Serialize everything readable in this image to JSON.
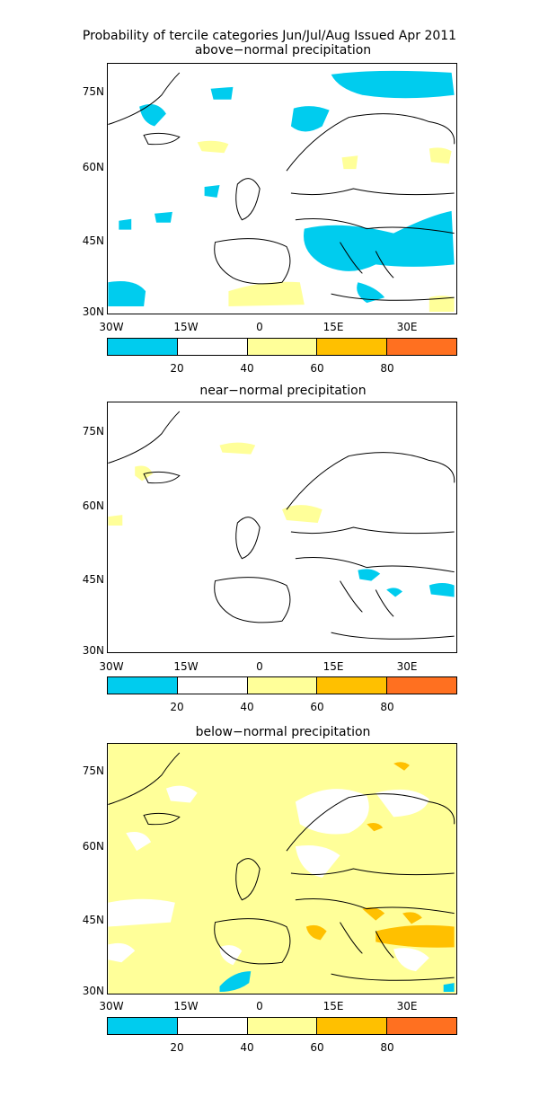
{
  "title": "Probability of tercile categories Jun/Jul/Aug Issued Apr 2011",
  "panels": [
    {
      "subtitle": "above−normal precipitation"
    },
    {
      "subtitle": "near−normal precipitation"
    },
    {
      "subtitle": "below−normal precipitation"
    }
  ],
  "lat_labels": [
    "75N",
    "60N",
    "45N",
    "30N"
  ],
  "lon_labels": [
    "30W",
    "15W",
    "0",
    "15E",
    "30E"
  ],
  "colorbar": {
    "colors": [
      "#00ccee",
      "#ffffff",
      "#ffff99",
      "#ffc000",
      "#ff7020"
    ],
    "labels": [
      "20",
      "40",
      "60",
      "80"
    ]
  }
}
